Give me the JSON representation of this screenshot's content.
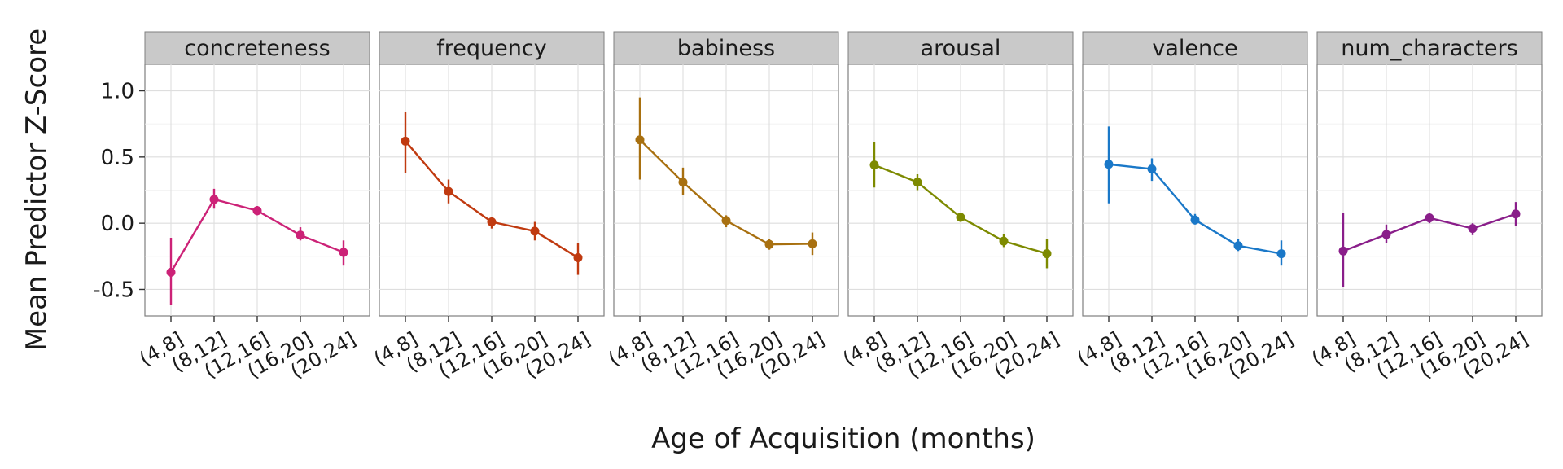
{
  "chart_data": {
    "type": "line",
    "xlabel": "Age of Acquisition (months)",
    "ylabel": "Mean Predictor Z-Score",
    "categories": [
      "(4,8]",
      "(8,12]",
      "(12,16]",
      "(16,20]",
      "(20,24]"
    ],
    "ylim": [
      -0.7,
      1.2
    ],
    "yticks": [
      -0.5,
      0.0,
      0.5,
      1.0
    ],
    "ytick_labels": [
      "-0.5",
      "0.0",
      "0.5",
      "1.0"
    ],
    "grid": true,
    "legend": "none",
    "panels": [
      {
        "name": "concreteness",
        "color": "#cc2277",
        "values": [
          -0.37,
          0.18,
          0.095,
          -0.09,
          -0.22
        ],
        "lower": [
          -0.62,
          0.11,
          0.06,
          -0.13,
          -0.32
        ],
        "upper": [
          -0.11,
          0.26,
          0.13,
          -0.03,
          -0.13
        ]
      },
      {
        "name": "frequency",
        "color": "#c03a10",
        "values": [
          0.62,
          0.24,
          0.01,
          -0.06,
          -0.26
        ],
        "lower": [
          0.38,
          0.15,
          -0.04,
          -0.13,
          -0.39
        ],
        "upper": [
          0.84,
          0.33,
          0.05,
          0.01,
          -0.15
        ]
      },
      {
        "name": "babiness",
        "color": "#a87010",
        "values": [
          0.63,
          0.31,
          0.02,
          -0.16,
          -0.155
        ],
        "lower": [
          0.33,
          0.21,
          -0.03,
          -0.2,
          -0.24
        ],
        "upper": [
          0.95,
          0.42,
          0.06,
          -0.12,
          -0.07
        ]
      },
      {
        "name": "arousal",
        "color": "#7d8a00",
        "values": [
          0.44,
          0.31,
          0.045,
          -0.135,
          -0.23
        ],
        "lower": [
          0.27,
          0.25,
          0.01,
          -0.18,
          -0.34
        ],
        "upper": [
          0.61,
          0.37,
          0.08,
          -0.08,
          -0.12
        ]
      },
      {
        "name": "valence",
        "color": "#1a78c8",
        "values": [
          0.445,
          0.41,
          0.025,
          -0.17,
          -0.23
        ],
        "lower": [
          0.15,
          0.32,
          -0.01,
          -0.21,
          -0.32
        ],
        "upper": [
          0.73,
          0.49,
          0.07,
          -0.12,
          -0.13
        ]
      },
      {
        "name": "num_characters",
        "color": "#8a1e8a",
        "values": [
          -0.21,
          -0.085,
          0.04,
          -0.04,
          0.07
        ],
        "lower": [
          -0.48,
          -0.15,
          0.0,
          -0.09,
          -0.02
        ],
        "upper": [
          0.08,
          -0.01,
          0.08,
          0.0,
          0.16
        ]
      }
    ]
  }
}
